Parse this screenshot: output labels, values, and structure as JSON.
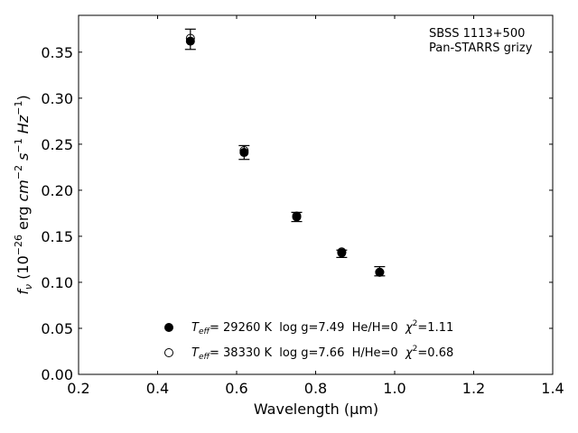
{
  "chart_data": {
    "type": "scatter",
    "xlabel": "Wavelength (μm)",
    "ylabel_parts": {
      "prefix": "f",
      "sub": "ν",
      "paren_open": " (10",
      "exp1": "−26",
      "mid1": " erg ",
      "cm": "cm",
      "exp2": "−2",
      "s": " s",
      "exp3": "−1",
      "hz": " Hz",
      "exp4": "−1",
      "paren_close": ")"
    },
    "xlim": [
      0.2,
      1.4
    ],
    "ylim": [
      0.0,
      0.39
    ],
    "xticks": [
      "0.2",
      "0.4",
      "0.6",
      "0.8",
      "1.0",
      "1.2",
      "1.4"
    ],
    "xtick_values": [
      0.2,
      0.4,
      0.6,
      0.8,
      1.0,
      1.2,
      1.4
    ],
    "yticks": [
      "0.00",
      "0.05",
      "0.10",
      "0.15",
      "0.20",
      "0.25",
      "0.30",
      "0.35"
    ],
    "ytick_values": [
      0.0,
      0.05,
      0.1,
      0.15,
      0.2,
      0.25,
      0.3,
      0.35
    ],
    "grid": false,
    "annotation": [
      "SBSS 1113+500",
      "Pan-STARRS grizy"
    ],
    "series": [
      {
        "name": "Teff= 29260 K  log g=7.49  He/H=0  χ2=1.11",
        "marker": "filled-circle",
        "color": "#000000",
        "x": [
          0.483,
          0.619,
          0.752,
          0.866,
          0.962
        ],
        "y": [
          0.362,
          0.241,
          0.171,
          0.132,
          0.111
        ]
      },
      {
        "name": "Teff= 38330 K  log g=7.66  H/He=0  χ2=0.68",
        "marker": "open-circle",
        "color": "#000000",
        "x": [
          0.483,
          0.619,
          0.752,
          0.866,
          0.962
        ],
        "y": [
          0.365,
          0.243,
          0.172,
          0.133,
          0.111
        ]
      }
    ],
    "observed": {
      "marker": "errorbar",
      "x": [
        0.483,
        0.619,
        0.752,
        0.866,
        0.962
      ],
      "y": [
        0.364,
        0.241,
        0.171,
        0.131,
        0.112
      ],
      "yerr": [
        0.011,
        0.0075,
        0.005,
        0.004,
        0.005
      ]
    },
    "legend_placement": "lower-center",
    "legend": [
      {
        "teff_sym": "T",
        "teff_sub": "eff",
        "teff_val": "= 29260 K  log g=7.49  He/H=0  ",
        "chi": "χ",
        "chi_sup": "2",
        "chi_val": "=1.11"
      },
      {
        "teff_sym": "T",
        "teff_sub": "eff",
        "teff_val": "= 38330 K  log g=7.66  H/He=0  ",
        "chi": "χ",
        "chi_sup": "2",
        "chi_val": "=0.68"
      }
    ]
  }
}
